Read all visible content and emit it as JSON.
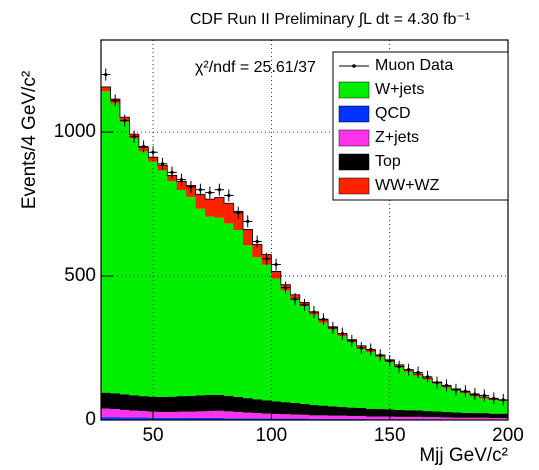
{
  "chart_data": {
    "type": "stacked_histogram",
    "title": "CDF Run II Preliminary ∫L dt = 4.30 fb⁻¹",
    "annotation": "χ²/ndf = 25.61/37",
    "y_label": "Events/4 GeV/c²",
    "x_label": "Mjj GeV/c²",
    "bins": [
      28,
      32,
      36,
      40,
      44,
      48,
      52,
      56,
      60,
      64,
      68,
      72,
      76,
      80,
      84,
      88,
      92,
      96,
      100,
      104,
      108,
      112,
      116,
      120,
      124,
      128,
      132,
      136,
      140,
      144,
      148,
      152,
      156,
      160,
      164,
      168,
      172,
      176,
      180,
      184,
      188,
      192,
      196,
      200
    ],
    "xlim": [
      28,
      200
    ],
    "xticks": [
      50,
      100,
      150,
      200
    ],
    "ylim": [
      0,
      1320
    ],
    "yticks": [
      0,
      500,
      1000
    ],
    "grid": true,
    "legend": "upper right",
    "series": [
      {
        "name": "W+jets",
        "color": "#00ee00",
        "values": [
          1047,
          1007,
          948,
          892,
          850,
          817,
          787,
          749,
          716,
          691,
          648,
          620,
          616,
          599,
          580,
          531,
          493,
          472,
          426,
          388,
          361,
          340,
          314,
          288,
          268,
          246,
          228,
          208,
          197,
          181,
          165,
          150,
          134,
          121,
          109,
          96,
          85,
          77,
          68,
          58,
          51,
          47,
          44
        ]
      },
      {
        "name": "QCD",
        "color": "#0033ff",
        "values": [
          10,
          10,
          9,
          9,
          9,
          8,
          8,
          8,
          8,
          7,
          7,
          7,
          7,
          6,
          6,
          6,
          6,
          5,
          5,
          5,
          5,
          5,
          4,
          4,
          4,
          4,
          4,
          4,
          3,
          3,
          3,
          3,
          3,
          3,
          3,
          3,
          2,
          2,
          2,
          2,
          2,
          2,
          2
        ]
      },
      {
        "name": "Z+jets",
        "color": "#ff33ee",
        "values": [
          30,
          28,
          26,
          24,
          22,
          21,
          20,
          20,
          21,
          22,
          23,
          24,
          25,
          24,
          22,
          20,
          18,
          17,
          16,
          15,
          14,
          13,
          12,
          12,
          11,
          11,
          10,
          10,
          9,
          9,
          9,
          8,
          8,
          8,
          7,
          7,
          7,
          6,
          6,
          6,
          6,
          5,
          5
        ]
      },
      {
        "name": "Top",
        "color": "#000000",
        "values": [
          55,
          55,
          54,
          53,
          52,
          52,
          52,
          53,
          54,
          55,
          56,
          56,
          55,
          54,
          52,
          50,
          48,
          46,
          44,
          42,
          40,
          38,
          36,
          34,
          32,
          30,
          29,
          28,
          27,
          26,
          25,
          24,
          23,
          22,
          21,
          20,
          19,
          18,
          17,
          16,
          16,
          15,
          15
        ]
      },
      {
        "name": "WW+WZ",
        "color": "#ff2200",
        "values": [
          15,
          15,
          15,
          15,
          15,
          15,
          18,
          20,
          30,
          40,
          50,
          60,
          70,
          70,
          65,
          55,
          45,
          35,
          25,
          20,
          15,
          12,
          10,
          10,
          9,
          9,
          8,
          8,
          8,
          7,
          7,
          7,
          6,
          6,
          6,
          6,
          5,
          5,
          5,
          5,
          5,
          4,
          4
        ]
      }
    ],
    "data": {
      "name": "Muon Data",
      "color": "#000000",
      "values": [
        1200,
        1110,
        1040,
        985,
        950,
        930,
        890,
        860,
        835,
        810,
        800,
        790,
        800,
        780,
        720,
        690,
        620,
        560,
        540,
        460,
        420,
        400,
        375,
        350,
        320,
        300,
        275,
        250,
        245,
        225,
        205,
        185,
        175,
        165,
        150,
        130,
        120,
        105,
        100,
        90,
        85,
        75,
        70
      ]
    }
  }
}
